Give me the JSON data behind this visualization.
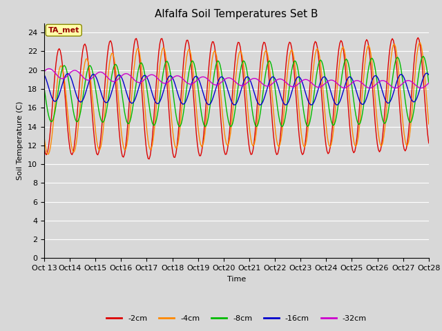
{
  "title": "Alfalfa Soil Temperatures Set B",
  "xlabel": "Time",
  "ylabel": "Soil Temperature (C)",
  "ylim": [
    0,
    25
  ],
  "yticks": [
    0,
    2,
    4,
    6,
    8,
    10,
    12,
    14,
    16,
    18,
    20,
    22,
    24
  ],
  "background_color": "#d8d8d8",
  "plot_bg_color": "#d8d8d8",
  "series": [
    {
      "label": "-2cm",
      "color": "#dd0000",
      "lw": 1.0
    },
    {
      "label": "-4cm",
      "color": "#ff8800",
      "lw": 1.0
    },
    {
      "label": "-8cm",
      "color": "#00bb00",
      "lw": 1.0
    },
    {
      "label": "-16cm",
      "color": "#0000cc",
      "lw": 1.0
    },
    {
      "label": "-32cm",
      "color": "#cc00cc",
      "lw": 1.0
    }
  ],
  "xtick_labels": [
    "Oct 13",
    "Oct 14",
    "Oct 15",
    "Oct 16",
    "Oct 17",
    "Oct 18",
    "Oct 19",
    "Oct 20",
    "Oct 21",
    "Oct 22",
    "Oct 23",
    "Oct 24",
    "Oct 25",
    "Oct 26",
    "Oct 27",
    "Oct 28"
  ],
  "annotation_text": "TA_met",
  "annotation_color": "#990000",
  "annotation_bg": "#ffffaa",
  "title_fontsize": 11,
  "axis_label_fontsize": 8,
  "tick_fontsize": 8,
  "legend_fontsize": 8
}
